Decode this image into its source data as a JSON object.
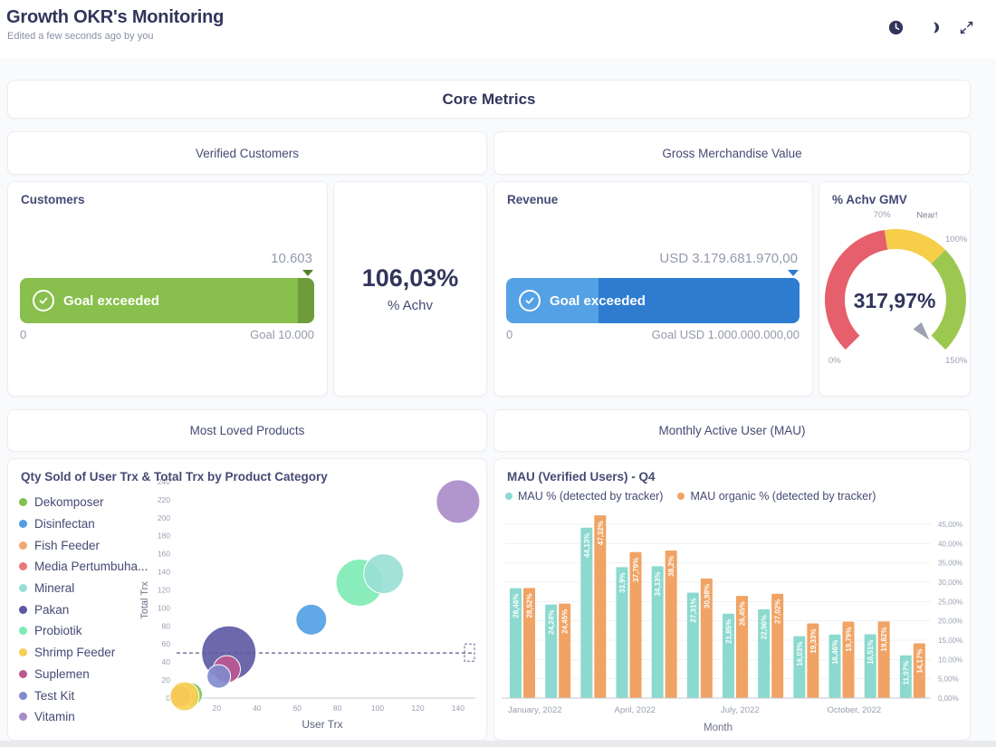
{
  "header": {
    "title": "Growth OKR's Monitoring",
    "subtitle": "Edited a few seconds ago by you",
    "icons": [
      "clock-icon",
      "moon-icon",
      "fullscreen-icon"
    ]
  },
  "sections": {
    "core_metrics": "Core Metrics",
    "verified_customers": "Verified Customers",
    "gross_merchandise_value": "Gross Merchandise Value",
    "most_loved_products": "Most Loved Products",
    "monthly_active_user": "Monthly Active User (MAU)"
  },
  "customers_card": {
    "title": "Customers",
    "value": 10603,
    "value_label": "10.603",
    "goal": 10000,
    "status_label": "Goal exceeded",
    "range_min_label": "0",
    "goal_label": "Goal 10.000",
    "bar_color": "#88BF4D",
    "bar_overflow_color": "#6E9C3B",
    "marker_color": "#557F28"
  },
  "achv_card": {
    "value_label": "106,03%",
    "caption": "% Achv"
  },
  "revenue_card": {
    "title": "Revenue",
    "value": 3179681970,
    "value_label": "USD 3.179.681.970,00",
    "goal": 1000000000,
    "status_label": "Goal exceeded",
    "range_min_label": "0",
    "goal_label": "Goal USD 1.000.000.000,00",
    "bar_color": "#54A1E5",
    "bar_overflow_color": "#2D7CD0",
    "marker_color": "#2D7CD0"
  },
  "gauge_card": {
    "title": "% Achv GMV",
    "value_label": "317,97%",
    "min": 0,
    "max": 150,
    "segments": [
      {
        "from": 0,
        "to": 70,
        "color": "#E5606C",
        "label": ""
      },
      {
        "from": 70,
        "to": 100,
        "color": "#F6CE4A",
        "label": "Near!"
      },
      {
        "from": 100,
        "to": 150,
        "color": "#9CC84F",
        "label": ""
      }
    ],
    "tick_labels": [
      {
        "value": 0,
        "label": "0%"
      },
      {
        "value": 70,
        "label": "70%"
      },
      {
        "value": 100,
        "label": "100%"
      },
      {
        "value": 150,
        "label": "150%"
      }
    ],
    "needle_value": 150,
    "needle_color": "#9CA3B0"
  },
  "chart_data": [
    {
      "type": "scatter",
      "title": "Qty Sold of User Trx & Total Trx by Product Category",
      "xlabel": "User Trx",
      "ylabel": "Total Trx",
      "xlim": [
        0,
        145
      ],
      "ylim": [
        0,
        245
      ],
      "x_ticks": [
        20,
        40,
        60,
        80,
        100,
        120,
        140
      ],
      "y_ticks": [
        0,
        20,
        40,
        60,
        80,
        100,
        120,
        140,
        160,
        180,
        200,
        220,
        240
      ],
      "goal_line_y": 50,
      "points": [
        {
          "name": "Dekomposer",
          "color": "#7EC14D",
          "x": 7,
          "y": 4,
          "r": 13,
          "z": 8
        },
        {
          "name": "Disinfectan",
          "color": "#509EE3",
          "x": 67,
          "y": 87,
          "r": 17,
          "z": 4
        },
        {
          "name": "Fish Feeder",
          "color": "#F2A86F",
          "x": 4,
          "y": 3,
          "r": 11,
          "z": 9
        },
        {
          "name": "Media Pertumbuha...",
          "color": "#EE7580",
          "x": 2,
          "y": 2,
          "r": 12,
          "z": 10
        },
        {
          "name": "Mineral",
          "color": "#98DFD5",
          "x": 103,
          "y": 138,
          "r": 22,
          "z": 3
        },
        {
          "name": "Pakan",
          "color": "#5C58A3",
          "x": 26,
          "y": 50,
          "r": 30,
          "z": 5
        },
        {
          "name": "Probiotik",
          "color": "#7CEBB4",
          "x": 91,
          "y": 128,
          "r": 26,
          "z": 2
        },
        {
          "name": "Shrimp Feeder",
          "color": "#F6D052",
          "x": 4,
          "y": 2,
          "r": 16,
          "z": 11
        },
        {
          "name": "Suplemen",
          "color": "#BE5690",
          "x": 25,
          "y": 32,
          "r": 15,
          "z": 6
        },
        {
          "name": "Test Kit",
          "color": "#7F8BCE",
          "x": 21,
          "y": 24,
          "r": 13,
          "z": 7
        },
        {
          "name": "Vitamin",
          "color": "#A98BC8",
          "x": 140,
          "y": 218,
          "r": 24,
          "z": 1
        }
      ]
    },
    {
      "type": "bar",
      "title": "MAU (Verified Users) - Q4",
      "xlabel": "Month",
      "x_tick_labels": [
        "January, 2022",
        "April, 2022",
        "July, 2022",
        "October, 2022"
      ],
      "x_tick_groups": [
        0,
        3,
        6,
        9
      ],
      "y_axis_labels": [
        "0,00%",
        "5,00%",
        "10,00%",
        "15,00%",
        "20,00%",
        "25,00%",
        "30,00%",
        "35,00%",
        "40,00%",
        "45,00%"
      ],
      "ymax": 45,
      "series": [
        {
          "name": "MAU % (detected by tracker)",
          "color": "#8BD9CF",
          "values": [
            28.46,
            24.24,
            44.13,
            33.9,
            34.13,
            27.31,
            21.85,
            22.96,
            16.03,
            16.46,
            16.51,
            11.07
          ],
          "labels": [
            "28,46%",
            "24,24%",
            "44,13%",
            "33,9%",
            "34,13%",
            "27,31%",
            "21,85%",
            "22,96%",
            "16,03%",
            "16,46%",
            "16,51%",
            "11,07%"
          ]
        },
        {
          "name": "MAU organic % (detected by tracker)",
          "color": "#F0A364",
          "values": [
            28.52,
            24.45,
            47.32,
            37.79,
            38.2,
            30.98,
            26.45,
            27.02,
            19.33,
            19.79,
            19.82,
            14.17
          ],
          "labels": [
            "28,52%",
            "24,45%",
            "47,32%",
            "37,79%",
            "38,2%",
            "30,98%",
            "26,45%",
            "27,02%",
            "19,33%",
            "19,79%",
            "19,82%",
            "14,17%"
          ]
        }
      ]
    }
  ]
}
